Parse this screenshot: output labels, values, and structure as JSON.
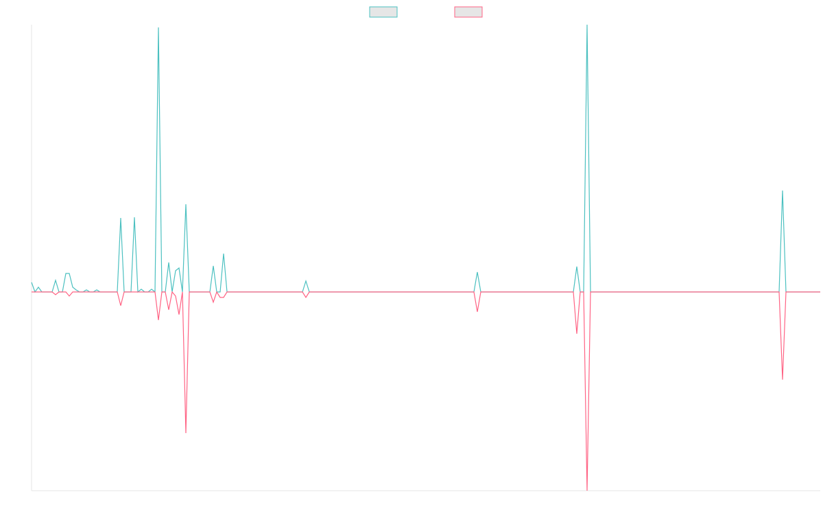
{
  "chart_data": {
    "type": "line",
    "categories": [
      null,
      null,
      null,
      null,
      null,
      null,
      null,
      null,
      null,
      null,
      null,
      null,
      null,
      null,
      null,
      null,
      null,
      null,
      null,
      null,
      null,
      null,
      null,
      null,
      null,
      null,
      null,
      null,
      null,
      null,
      null,
      null,
      null,
      null,
      null,
      null,
      null,
      null,
      null,
      null,
      null,
      null,
      null,
      null,
      null,
      null,
      null,
      null,
      null,
      null,
      null,
      null,
      null,
      null,
      null,
      null,
      null,
      null,
      null,
      null,
      null,
      null,
      null,
      null,
      null,
      null,
      null,
      null,
      null,
      null,
      null,
      null,
      null,
      null,
      null,
      null,
      null,
      null,
      null,
      null,
      null,
      null,
      null,
      null,
      null,
      null,
      null,
      null,
      null,
      null,
      null,
      null,
      null,
      null,
      null,
      null,
      null,
      null,
      null,
      null,
      null,
      null,
      null,
      null,
      null,
      null,
      null,
      null,
      null,
      null,
      null,
      null,
      null,
      null,
      null,
      null,
      null,
      null,
      null,
      null,
      null,
      null,
      null,
      null,
      null,
      null,
      null,
      null,
      null,
      null,
      null,
      null,
      null,
      null,
      null,
      null,
      null,
      null,
      null,
      null,
      null,
      null,
      null,
      null,
      null,
      null,
      null,
      null,
      null,
      null,
      null,
      null,
      null,
      null,
      null,
      null,
      null,
      null,
      null,
      null,
      null,
      null,
      null,
      null,
      null,
      null,
      null,
      null,
      null,
      null,
      null,
      null,
      null,
      null,
      null,
      null,
      null,
      null,
      null,
      null,
      null,
      null,
      null,
      null,
      null,
      null,
      null,
      null,
      null,
      null,
      null,
      null,
      null,
      null,
      null,
      null,
      null,
      null,
      null,
      null,
      null,
      null,
      null,
      null,
      null,
      null,
      null,
      null,
      null,
      null,
      null,
      null,
      null,
      null,
      null,
      null,
      null,
      null,
      null,
      null,
      null,
      null,
      null,
      null,
      null,
      null,
      null,
      null,
      null,
      null,
      null
    ],
    "series": [
      {
        "color": "#4bc0c0",
        "values": [
          14,
          0,
          7,
          0,
          0,
          0,
          0,
          17,
          0,
          0,
          27,
          27,
          7,
          3,
          0,
          0,
          3,
          0,
          0,
          3,
          0,
          0,
          0,
          0,
          0,
          0,
          108,
          0,
          0,
          0,
          109,
          0,
          4,
          0,
          0,
          4,
          0,
          386,
          0,
          0,
          43,
          0,
          31,
          35,
          0,
          128,
          0,
          0,
          0,
          0,
          0,
          0,
          0,
          38,
          0,
          0,
          56,
          0,
          0,
          0,
          0,
          0,
          0,
          0,
          0,
          0,
          0,
          0,
          0,
          0,
          0,
          0,
          0,
          0,
          0,
          0,
          0,
          0,
          0,
          0,
          16,
          0,
          0,
          0,
          0,
          0,
          0,
          0,
          0,
          0,
          0,
          0,
          0,
          0,
          0,
          0,
          0,
          0,
          0,
          0,
          0,
          0,
          0,
          0,
          0,
          0,
          0,
          0,
          0,
          0,
          0,
          0,
          0,
          0,
          0,
          0,
          0,
          0,
          0,
          0,
          0,
          0,
          0,
          0,
          0,
          0,
          0,
          0,
          0,
          0,
          29,
          0,
          0,
          0,
          0,
          0,
          0,
          0,
          0,
          0,
          0,
          0,
          0,
          0,
          0,
          0,
          0,
          0,
          0,
          0,
          0,
          0,
          0,
          0,
          0,
          0,
          0,
          0,
          0,
          37,
          0,
          0,
          390,
          0,
          0,
          0,
          0,
          0,
          0,
          0,
          0,
          0,
          0,
          0,
          0,
          0,
          0,
          0,
          0,
          0,
          0,
          0,
          0,
          0,
          0,
          0,
          0,
          0,
          0,
          0,
          0,
          0,
          0,
          0,
          0,
          0,
          0,
          0,
          0,
          0,
          0,
          0,
          0,
          0,
          0,
          0,
          0,
          0,
          0,
          0,
          0,
          0,
          0,
          0,
          0,
          0,
          0,
          0,
          0,
          148,
          0,
          0,
          0,
          0,
          0,
          0,
          0,
          0,
          0,
          0,
          0
        ]
      },
      {
        "color": "#ff6384",
        "values": [
          0,
          0,
          0,
          0,
          0,
          0,
          0,
          -4,
          0,
          0,
          0,
          -6,
          0,
          0,
          0,
          0,
          0,
          0,
          0,
          0,
          0,
          0,
          0,
          0,
          0,
          0,
          -20,
          0,
          0,
          0,
          0,
          0,
          0,
          0,
          0,
          0,
          0,
          -41,
          0,
          0,
          -26,
          0,
          -6,
          -33,
          0,
          -206,
          0,
          0,
          0,
          0,
          0,
          0,
          0,
          -15,
          0,
          -8,
          -8,
          0,
          0,
          0,
          0,
          0,
          0,
          0,
          0,
          0,
          0,
          0,
          0,
          0,
          0,
          0,
          0,
          0,
          0,
          0,
          0,
          0,
          0,
          0,
          -8,
          0,
          0,
          0,
          0,
          0,
          0,
          0,
          0,
          0,
          0,
          0,
          0,
          0,
          0,
          0,
          0,
          0,
          0,
          0,
          0,
          0,
          0,
          0,
          0,
          0,
          0,
          0,
          0,
          0,
          0,
          0,
          0,
          0,
          0,
          0,
          0,
          0,
          0,
          0,
          0,
          0,
          0,
          0,
          0,
          0,
          0,
          0,
          0,
          0,
          -29,
          0,
          0,
          0,
          0,
          0,
          0,
          0,
          0,
          0,
          0,
          0,
          0,
          0,
          0,
          0,
          0,
          0,
          0,
          0,
          0,
          0,
          0,
          0,
          0,
          0,
          0,
          0,
          0,
          -61,
          0,
          0,
          -290,
          0,
          0,
          0,
          0,
          0,
          0,
          0,
          0,
          0,
          0,
          0,
          0,
          0,
          0,
          0,
          0,
          0,
          0,
          0,
          0,
          0,
          0,
          0,
          0,
          0,
          0,
          0,
          0,
          0,
          0,
          0,
          0,
          0,
          0,
          0,
          0,
          0,
          0,
          0,
          0,
          0,
          0,
          0,
          0,
          0,
          0,
          0,
          0,
          0,
          0,
          0,
          0,
          0,
          0,
          0,
          0,
          -128,
          0,
          0,
          0,
          0,
          0,
          0,
          0,
          0,
          0,
          0,
          0
        ]
      }
    ],
    "ylim": [
      -290,
      390
    ],
    "legend": "top"
  }
}
